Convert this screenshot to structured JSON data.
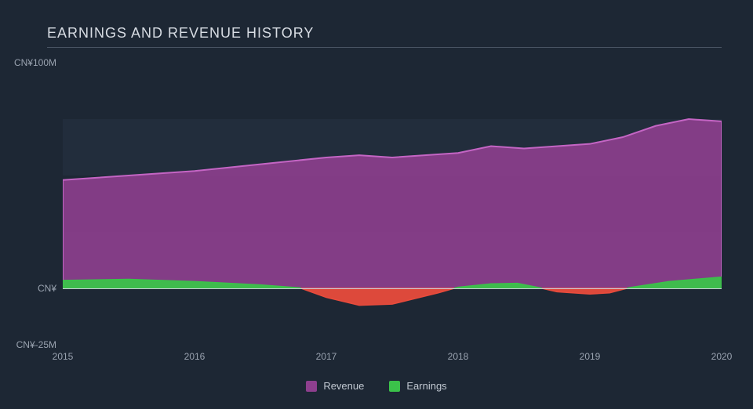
{
  "chart": {
    "type": "area",
    "title": "EARNINGS AND REVENUE HISTORY",
    "title_color": "#d8dde4",
    "title_fontsize": 18,
    "background_color": "#1d2734",
    "grid_band_color": "#222d3c",
    "underline_color": "#4a5564",
    "zero_line_color": "#c7cdd6",
    "axis_label_color": "#9aa3b0",
    "tick_fontsize": 12,
    "xlim": [
      2015,
      2020
    ],
    "ylim": [
      -25,
      100
    ],
    "x_ticks": [
      2015,
      2016,
      2017,
      2018,
      2019,
      2020
    ],
    "x_tick_labels": [
      "2015",
      "2016",
      "2017",
      "2018",
      "2019",
      "2020"
    ],
    "y_ticks": [
      -25,
      0,
      100
    ],
    "y_tick_labels": [
      "CN¥-25M",
      "CN¥",
      "CN¥100M"
    ],
    "grid_bands_y": [
      [
        0,
        25
      ],
      [
        50,
        75
      ]
    ],
    "series": [
      {
        "name": "Revenue",
        "legend_label": "Revenue",
        "fill_color": "#8e3f8e",
        "stroke_color": "#c465c4",
        "fill_opacity": 0.9,
        "stroke_width": 2,
        "x": [
          2015,
          2015.5,
          2016,
          2016.5,
          2017,
          2017.25,
          2017.5,
          2018,
          2018.25,
          2018.5,
          2019,
          2019.25,
          2019.5,
          2019.75,
          2020
        ],
        "y": [
          48,
          50,
          52,
          55,
          58,
          59,
          58,
          60,
          63,
          62,
          64,
          67,
          72,
          75,
          74
        ]
      },
      {
        "name": "Earnings",
        "legend_label": "Earnings",
        "fill_color_positive": "#3bc24a",
        "fill_color_negative": "#e84b3c",
        "stroke_color": "#3bc24a",
        "fill_opacity": 0.95,
        "stroke_width": 1.5,
        "x": [
          2015,
          2015.5,
          2016,
          2016.5,
          2016.8,
          2017,
          2017.25,
          2017.5,
          2017.85,
          2018,
          2018.25,
          2018.45,
          2018.6,
          2018.75,
          2019,
          2019.15,
          2019.3,
          2019.6,
          2020
        ],
        "y": [
          3.5,
          4,
          3,
          1.5,
          0.2,
          -4,
          -7.5,
          -7,
          -2,
          0.5,
          2,
          2.2,
          0.5,
          -1.5,
          -2.5,
          -2,
          0.3,
          3,
          5
        ]
      }
    ],
    "legend": {
      "items": [
        "Revenue",
        "Earnings"
      ],
      "colors": [
        "#8e3f8e",
        "#3bc24a"
      ],
      "text_color": "#c2c9d2"
    }
  }
}
